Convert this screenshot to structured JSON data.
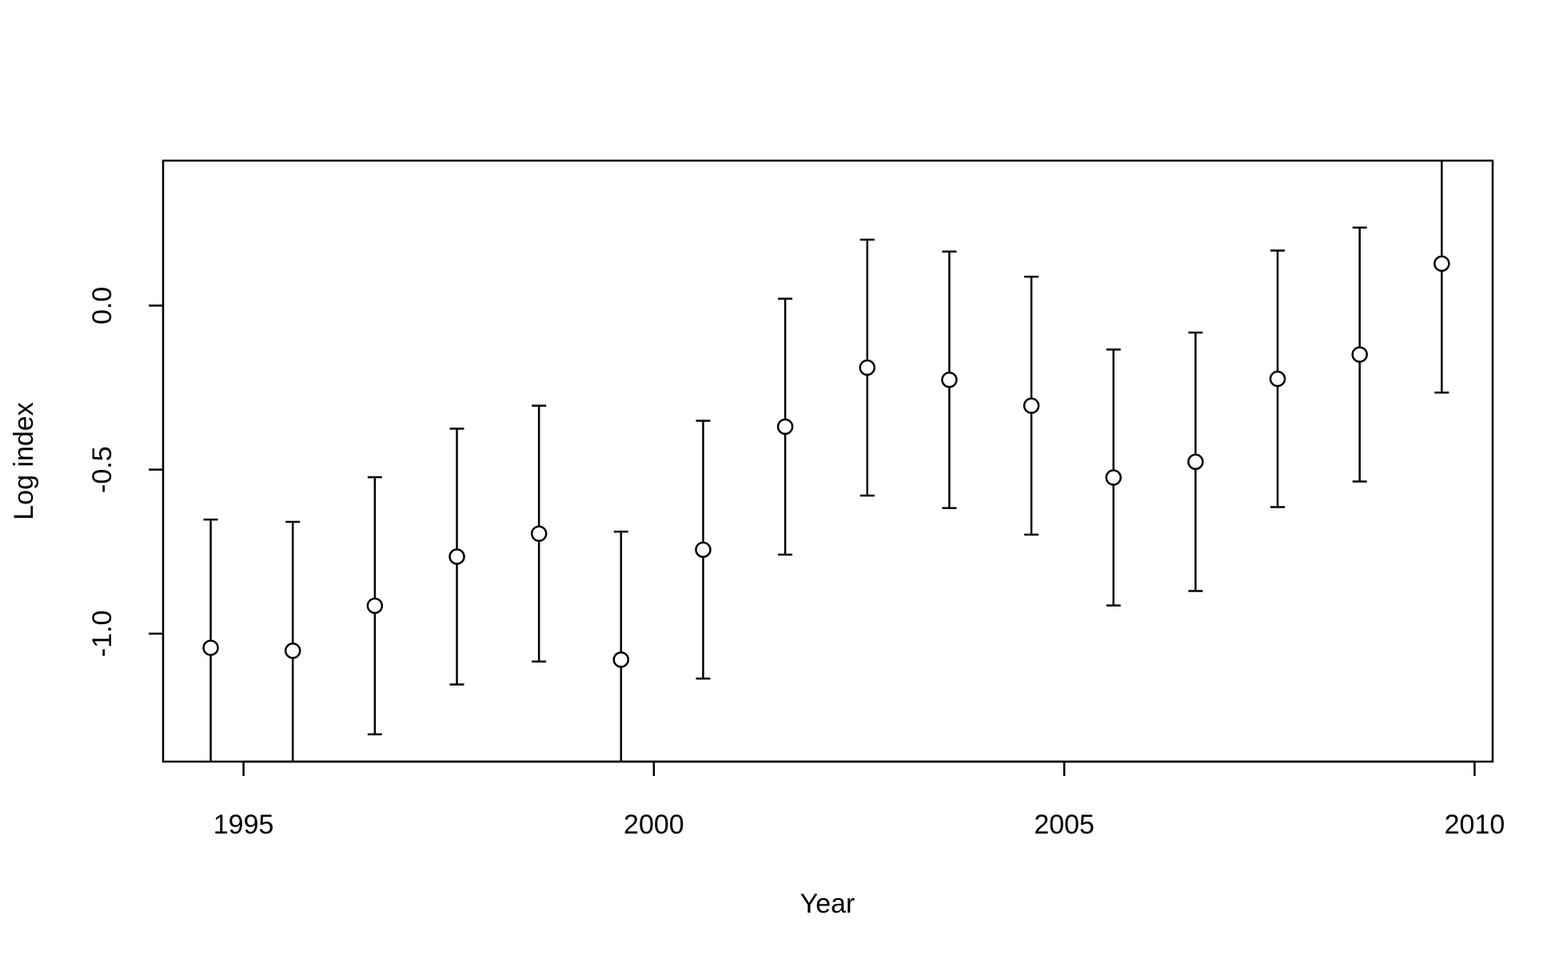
{
  "chart_data": {
    "type": "errorbar",
    "x_label": "Year",
    "y_label": "Log index",
    "x": [
      1994.6,
      1995.6,
      1996.6,
      1997.6,
      1998.6,
      1999.6,
      2000.6,
      2001.6,
      2002.6,
      2003.6,
      2004.6,
      2005.6,
      2006.6,
      2007.6,
      2008.6,
      2009.6
    ],
    "values": [
      -1.043,
      -1.052,
      -0.915,
      -0.765,
      -0.695,
      -1.079,
      -0.744,
      -0.369,
      -0.189,
      -0.226,
      -0.305,
      -0.524,
      -0.476,
      -0.223,
      -0.149,
      0.128
    ],
    "errors": [
      0.391,
      0.393,
      0.392,
      0.39,
      0.39,
      0.39,
      0.393,
      0.39,
      0.39,
      0.391,
      0.393,
      0.39,
      0.394,
      0.391,
      0.387,
      0.393
    ],
    "color": "#000000",
    "xlim": [
      1994.02,
      2010.22
    ],
    "ylim": [
      -1.39,
      0.442
    ],
    "xticks": [
      1995,
      2000,
      2005,
      2010
    ],
    "yticks": [
      {
        "value": -1,
        "label": "-1.0"
      },
      {
        "value": -0.5,
        "label": "-0.5"
      },
      {
        "value": 0,
        "label": "0.0"
      }
    ]
  }
}
